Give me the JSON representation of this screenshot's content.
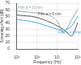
{
  "chart_data": {
    "type": "line",
    "x_label": "Frequency (Hz)",
    "y_label": "Screening effect (dB)",
    "x": [
      100000,
      200000,
      500000,
      1000000,
      2000000,
      5000000,
      10000000,
      20000000,
      50000000,
      100000000
    ],
    "series": [
      {
        "name": "Film a = 10 mm",
        "color": "#9aa5ab",
        "values": [
          58,
          57,
          56,
          55,
          54,
          50,
          42,
          25,
          45,
          60
        ]
      },
      {
        "name": "Film a = 4 mm",
        "color": "#4aa8d8",
        "values": [
          45,
          44,
          42,
          40,
          37,
          33,
          30,
          28,
          35,
          50
        ]
      },
      {
        "name": "Film a = 8 mm",
        "color": "#555555",
        "values": [
          52,
          51,
          50,
          48,
          45,
          40,
          35,
          30,
          20,
          40
        ]
      }
    ],
    "log": "x",
    "xlim": [
      100000,
      100000000
    ],
    "xticks": [
      {
        "value": 100000,
        "label": "10⁵"
      },
      {
        "value": 1000000,
        "label": "10⁶"
      },
      {
        "value": 10000000,
        "label": "10⁷"
      },
      {
        "value": 100000000,
        "label": "10⁸"
      }
    ],
    "ylim": [
      0,
      70
    ],
    "yticks": [
      0,
      10,
      20,
      30,
      40,
      50,
      60,
      70
    ],
    "grid": true
  }
}
